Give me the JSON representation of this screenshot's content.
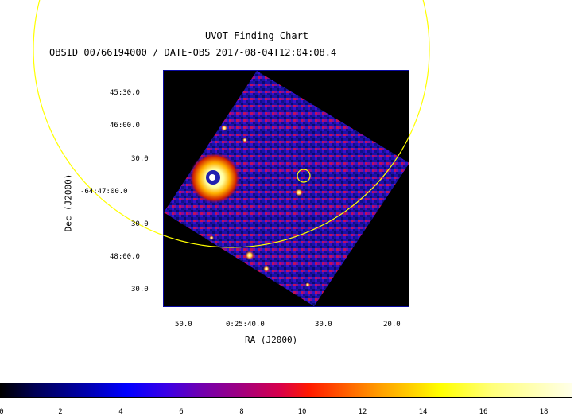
{
  "header": {
    "title": "UVOT Finding Chart",
    "subtitle": "OBSID 00766194000 / DATE-OBS 2017-08-04T12:04:08.4"
  },
  "axes": {
    "ra_label": "RA (J2000)",
    "dec_label": "Dec (J2000)",
    "ra_ticks": [
      "50.0",
      "0:25:40.0",
      "30.0",
      "20.0"
    ],
    "dec_ticks": [
      "45:30.0",
      "46:00.0",
      "30.0",
      "-64:47:00.0",
      "30.0",
      "48:00.0",
      "30.0"
    ]
  },
  "colorbar": {
    "ticks": [
      "0",
      "2",
      "4",
      "6",
      "8",
      "10",
      "12",
      "14",
      "16",
      "18"
    ]
  },
  "colors": {
    "background": "#ffffff",
    "region_circle": "#ffff00",
    "frame": "#0a0aa0"
  }
}
